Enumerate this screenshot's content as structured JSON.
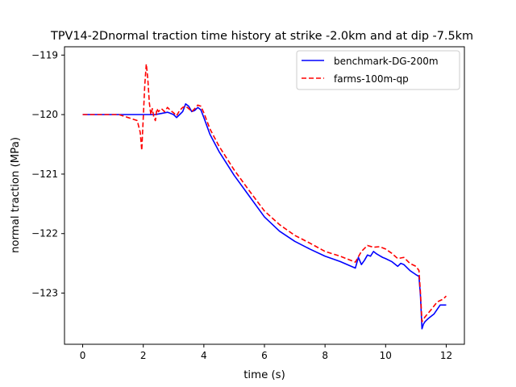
{
  "chart_data": {
    "type": "line",
    "title": "TPV14-2Dnormal traction time history at strike -2.0km and at dip -7.5km",
    "xlabel": "time (s)",
    "ylabel": "normal traction (MPa)",
    "xlim": [
      -0.6,
      12.6
    ],
    "ylim": [
      -123.86,
      -118.86
    ],
    "xticks": [
      0,
      2,
      4,
      6,
      8,
      10,
      12
    ],
    "xtick_labels": [
      "0",
      "2",
      "4",
      "6",
      "8",
      "10",
      "12"
    ],
    "yticks": [
      -119,
      -120,
      -121,
      -122,
      -123
    ],
    "ytick_labels": [
      "−119",
      "−120",
      "−121",
      "−122",
      "−123"
    ],
    "grid": false,
    "legend_position": "top-right",
    "series": [
      {
        "name": "benchmark-DG-200m",
        "color": "#0000ff",
        "dash": "solid",
        "x": [
          0,
          1.0,
          2.0,
          2.4,
          2.6,
          2.8,
          3.0,
          3.1,
          3.2,
          3.3,
          3.4,
          3.5,
          3.6,
          3.7,
          3.8,
          3.9,
          4.0,
          4.2,
          4.5,
          5.0,
          5.5,
          6.0,
          6.5,
          7.0,
          7.5,
          8.0,
          8.5,
          9.0,
          9.1,
          9.2,
          9.3,
          9.4,
          9.5,
          9.6,
          9.7,
          9.8,
          9.9,
          10.0,
          10.2,
          10.4,
          10.5,
          10.6,
          10.8,
          11.0,
          11.1,
          11.15,
          11.2,
          11.25,
          11.3,
          11.4,
          11.6,
          11.8,
          12.0
        ],
        "y": [
          -120.0,
          -120.0,
          -120.0,
          -120.0,
          -119.98,
          -119.96,
          -120.0,
          -120.05,
          -120.0,
          -119.95,
          -119.82,
          -119.86,
          -119.95,
          -119.93,
          -119.88,
          -119.92,
          -120.05,
          -120.33,
          -120.62,
          -121.02,
          -121.37,
          -121.72,
          -121.96,
          -122.13,
          -122.26,
          -122.38,
          -122.47,
          -122.58,
          -122.4,
          -122.52,
          -122.45,
          -122.36,
          -122.38,
          -122.3,
          -122.34,
          -122.37,
          -122.4,
          -122.42,
          -122.47,
          -122.55,
          -122.5,
          -122.52,
          -122.62,
          -122.69,
          -122.72,
          -123.05,
          -123.6,
          -123.52,
          -123.48,
          -123.43,
          -123.35,
          -123.2,
          -123.2
        ]
      },
      {
        "name": "farms-100m-qp",
        "color": "#ff0000",
        "dash": "dashed",
        "x": [
          0,
          1.2,
          1.5,
          1.8,
          1.9,
          1.95,
          2.0,
          2.05,
          2.1,
          2.15,
          2.2,
          2.25,
          2.3,
          2.35,
          2.4,
          2.45,
          2.5,
          2.6,
          2.7,
          2.8,
          2.9,
          3.0,
          3.1,
          3.2,
          3.3,
          3.4,
          3.5,
          3.6,
          3.7,
          3.8,
          3.9,
          4.0,
          4.2,
          4.5,
          5.0,
          5.5,
          6.0,
          6.5,
          7.0,
          7.5,
          8.0,
          8.5,
          9.0,
          9.2,
          9.4,
          9.6,
          9.8,
          10.0,
          10.2,
          10.4,
          10.6,
          10.8,
          11.0,
          11.1,
          11.15,
          11.2,
          11.3,
          11.5,
          11.7,
          11.9,
          12.0
        ],
        "y": [
          -120.0,
          -120.0,
          -120.05,
          -120.1,
          -120.3,
          -120.6,
          -120.05,
          -119.5,
          -119.15,
          -119.4,
          -119.8,
          -120.0,
          -119.9,
          -120.05,
          -120.1,
          -119.9,
          -119.95,
          -119.9,
          -119.95,
          -119.88,
          -119.93,
          -119.97,
          -120.02,
          -119.93,
          -119.88,
          -119.86,
          -119.9,
          -119.95,
          -119.9,
          -119.84,
          -119.86,
          -119.97,
          -120.24,
          -120.53,
          -120.93,
          -121.28,
          -121.62,
          -121.85,
          -122.03,
          -122.16,
          -122.3,
          -122.38,
          -122.48,
          -122.3,
          -122.2,
          -122.23,
          -122.22,
          -122.26,
          -122.33,
          -122.42,
          -122.4,
          -122.5,
          -122.55,
          -122.62,
          -123.0,
          -123.48,
          -123.4,
          -123.28,
          -123.15,
          -123.1,
          -123.05
        ]
      }
    ]
  }
}
